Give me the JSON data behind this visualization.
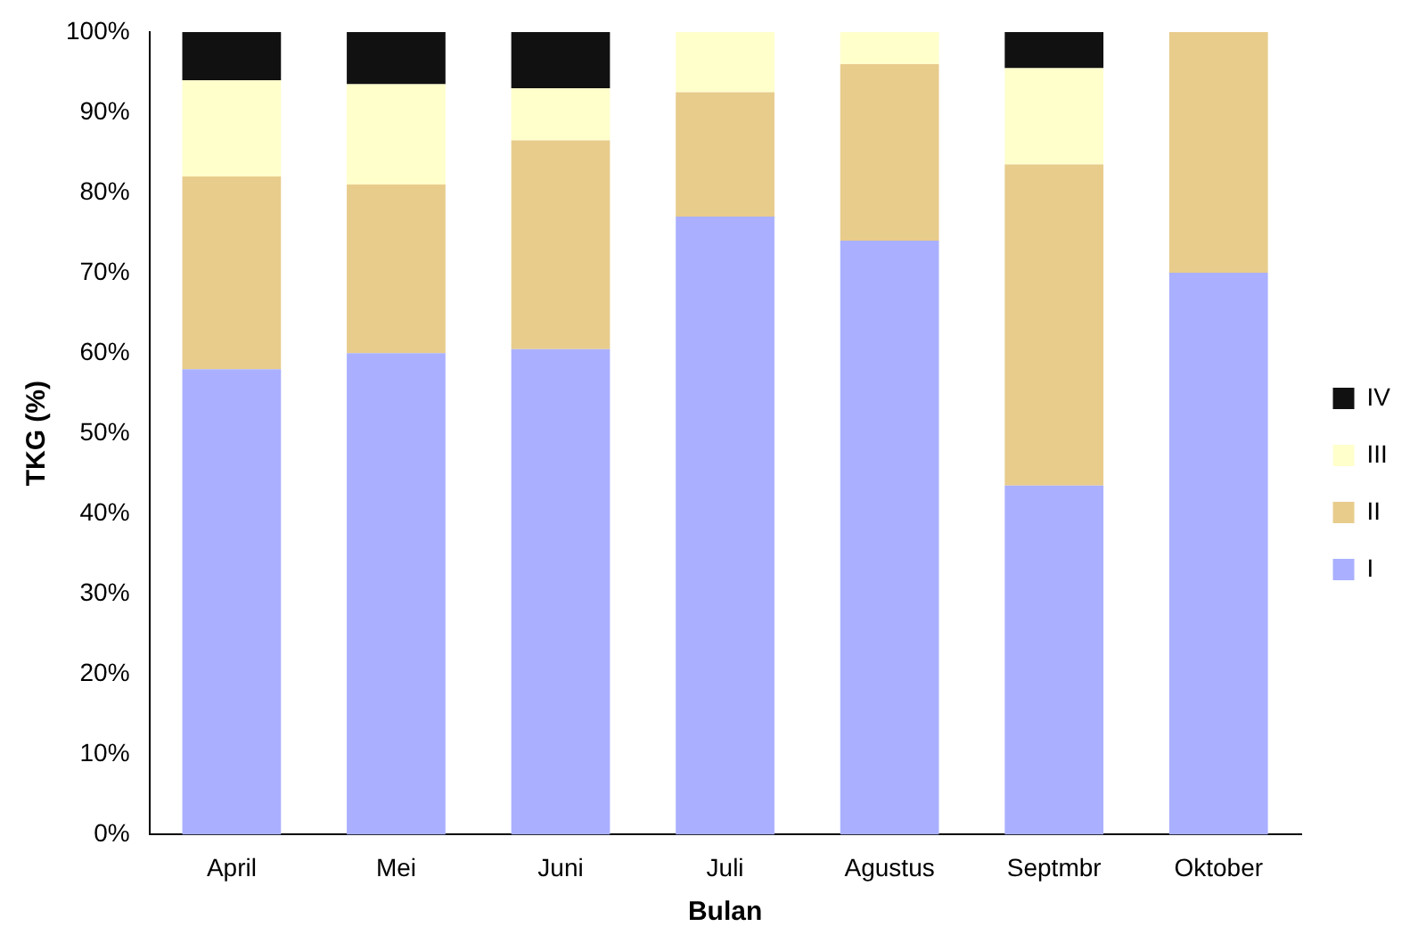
{
  "chart_data": {
    "type": "bar",
    "stacked": true,
    "xlabel": "Bulan",
    "ylabel": "TKG (%)",
    "categories": [
      "April",
      "Mei",
      "Juni",
      "Juli",
      "Agustus",
      "Septmbr",
      "Oktober"
    ],
    "series": [
      {
        "name": "I",
        "color": "#aab0ff",
        "values": [
          58,
          60,
          60.5,
          77,
          74,
          43.5,
          70
        ]
      },
      {
        "name": "II",
        "color": "#e8cc8c",
        "values": [
          24,
          21,
          26,
          15.5,
          22,
          40,
          30
        ]
      },
      {
        "name": "III",
        "color": "#ffffcc",
        "values": [
          12,
          12.5,
          6.5,
          7.5,
          4,
          12,
          0
        ]
      },
      {
        "name": "IV",
        "color": "#111111",
        "values": [
          6,
          6.5,
          7,
          0,
          0,
          4.5,
          0
        ]
      }
    ],
    "ylim": [
      0,
      100
    ],
    "yticks": [
      {
        "value": 0,
        "label": "0%"
      },
      {
        "value": 10,
        "label": "10%"
      },
      {
        "value": 20,
        "label": "20%"
      },
      {
        "value": 30,
        "label": "30%"
      },
      {
        "value": 40,
        "label": "40%"
      },
      {
        "value": 50,
        "label": "50%"
      },
      {
        "value": 60,
        "label": "60%"
      },
      {
        "value": 70,
        "label": "70%"
      },
      {
        "value": 80,
        "label": "80%"
      },
      {
        "value": 90,
        "label": "90%"
      },
      {
        "value": 100,
        "label": "100%"
      }
    ],
    "grid": false,
    "legend": "right"
  }
}
